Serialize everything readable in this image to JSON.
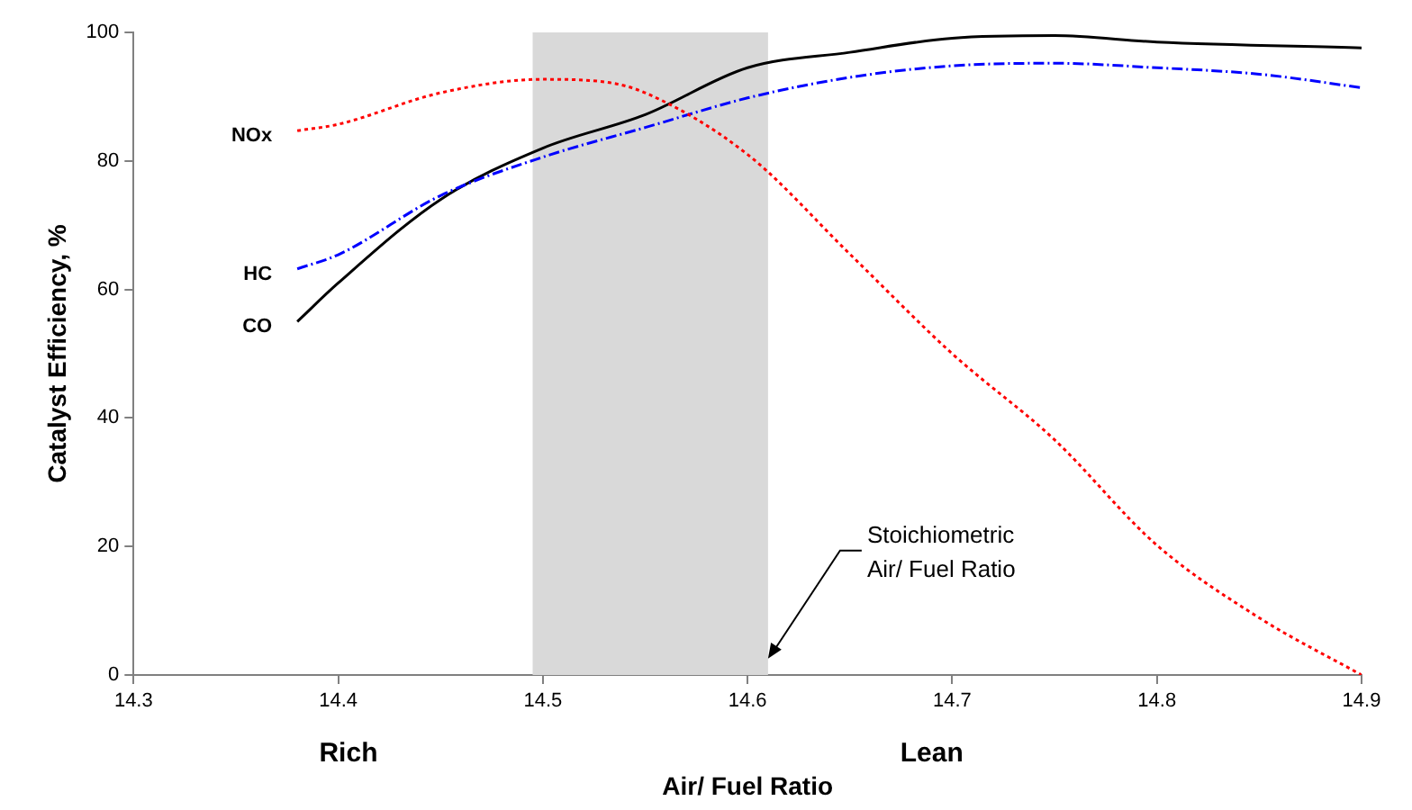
{
  "chart_data": {
    "type": "line",
    "xlabel": "Air/ Fuel Ratio",
    "ylabel": "Catalyst Efficiency, %",
    "xlim": [
      14.3,
      14.9
    ],
    "xticks": [
      14.3,
      14.4,
      14.5,
      14.6,
      14.7,
      14.8,
      14.9
    ],
    "ylim": [
      0,
      100
    ],
    "yticks": [
      0,
      20,
      40,
      60,
      80,
      100
    ],
    "grid": false,
    "legend": false,
    "marker": "none",
    "series": [
      {
        "name": "NOx",
        "color": "#ff0000",
        "line_style": "dotted",
        "x": [
          14.38,
          14.4,
          14.45,
          14.5,
          14.53,
          14.55,
          14.6,
          14.65,
          14.7,
          14.75,
          14.8,
          14.85,
          14.9
        ],
        "values": [
          84.7,
          85.7,
          90.6,
          92.7,
          92.3,
          90.6,
          81,
          65.5,
          50,
          36.6,
          20.2,
          8.9,
          0
        ]
      },
      {
        "name": "HC",
        "color": "#0000ff",
        "line_style": "dashed",
        "x": [
          14.38,
          14.4,
          14.45,
          14.5,
          14.55,
          14.6,
          14.65,
          14.7,
          14.75,
          14.8,
          14.85,
          14.9
        ],
        "values": [
          63.2,
          65.4,
          74.6,
          80.6,
          85.2,
          89.8,
          93,
          94.8,
          95.2,
          94.5,
          93.5,
          91.4
        ]
      },
      {
        "name": "CO",
        "color": "#000000",
        "line_style": "solid",
        "x": [
          14.38,
          14.4,
          14.45,
          14.5,
          14.55,
          14.6,
          14.65,
          14.7,
          14.75,
          14.8,
          14.9
        ],
        "values": [
          55,
          61,
          74,
          82,
          87.2,
          94.5,
          96.9,
          99.1,
          99.5,
          98.5,
          97.6
        ]
      }
    ],
    "bands": [
      {
        "axis": "x",
        "from": 14.495,
        "to": 14.61,
        "color": "#d9d9d9"
      }
    ],
    "annotations": [
      "Rich",
      "Lean",
      {
        "text": "Stoichiometric\nAir/ Fuel Ratio",
        "x": 14.61,
        "y": 2
      }
    ]
  }
}
